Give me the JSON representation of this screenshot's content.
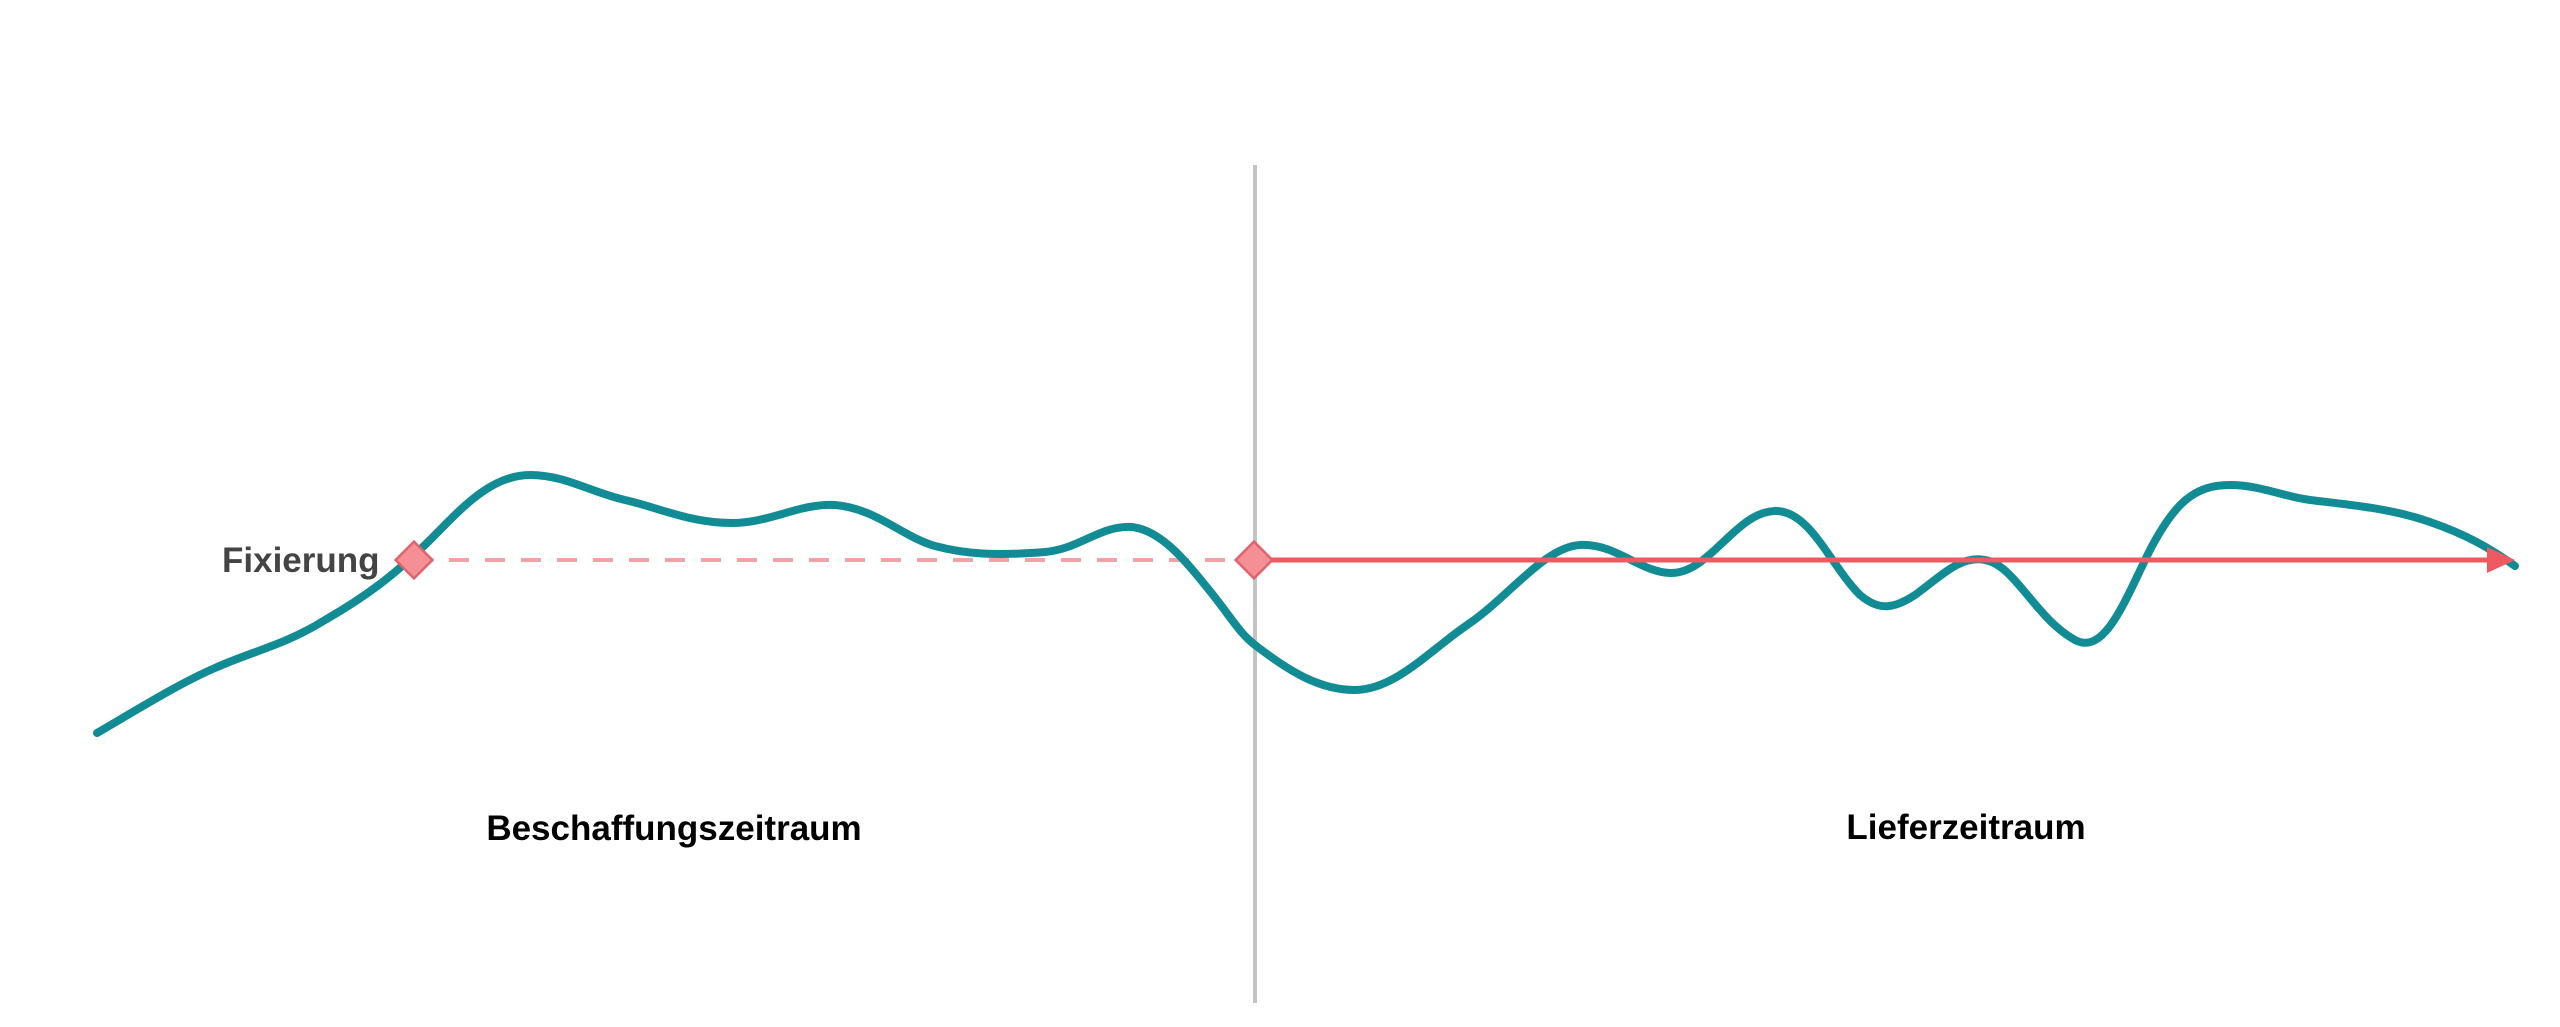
{
  "labels": {
    "fixierung": "Fixierung",
    "beschaffung": "Beschaffungszeitraum",
    "liefer": "Lieferzeitraum"
  },
  "colors": {
    "price_curve": "#118c95",
    "fixed_line": "#ef5a62",
    "dashed_line": "#f4a1a5",
    "marker_fill": "#f58f96",
    "marker_stroke": "#e2626b",
    "divider": "#c4c4c4",
    "fixierung_text": "#444444",
    "period_text": "#000000",
    "background": "#ffffff"
  }
}
